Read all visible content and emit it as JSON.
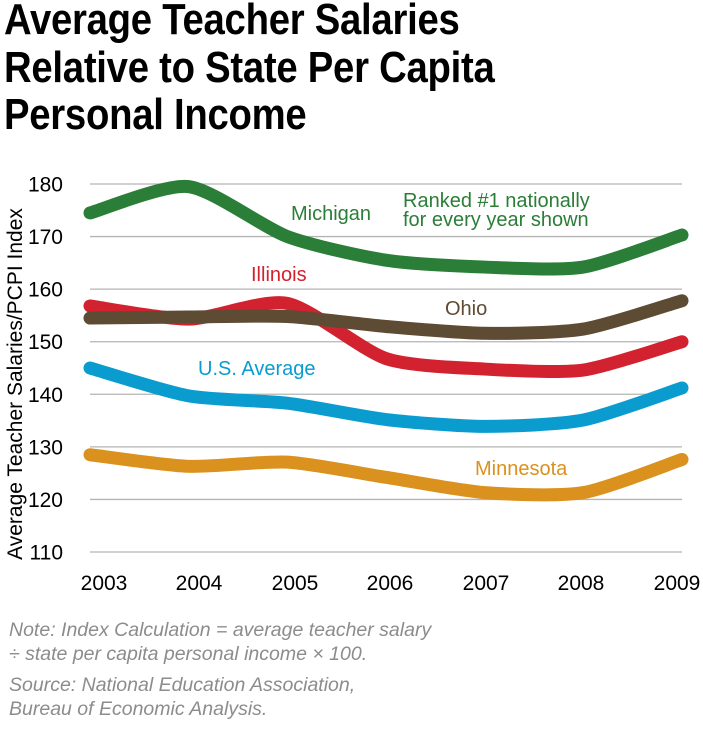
{
  "title": {
    "lines": [
      "Average Teacher Salaries",
      "Relative to State Per Capita",
      "Personal Income"
    ]
  },
  "notes": {
    "note_line1": "Note: Index Calculation = average teacher salary",
    "note_line2": "÷ state per capita personal income × 100.",
    "source_line1": "Source: National Education Association,",
    "source_line2": "Bureau of Economic Analysis."
  },
  "chart_data": {
    "type": "line",
    "title": "Average Teacher Salaries Relative to State Per Capita Personal Income",
    "xlabel": "",
    "ylabel": "Average Teacher Salaries/PCPI Index",
    "x": [
      "2003",
      "2004",
      "2005",
      "2006",
      "2007",
      "2008",
      "2009"
    ],
    "ylim": [
      110,
      180
    ],
    "yticks": [
      "110",
      "120",
      "130",
      "140",
      "150",
      "160",
      "170",
      "180"
    ],
    "grid": true,
    "legend": "inline labels",
    "series": [
      {
        "name": "Michigan",
        "color": "#2a7e37",
        "values": [
          174.5,
          179.5,
          170.0,
          165.5,
          164.2,
          164.2,
          170.3
        ]
      },
      {
        "name": "Illinois",
        "color": "#d2222f",
        "values": [
          156.8,
          154.3,
          157.3,
          146.8,
          144.8,
          144.6,
          150.0
        ]
      },
      {
        "name": "Ohio",
        "color": "#5e4b33",
        "values": [
          154.5,
          154.7,
          154.8,
          152.9,
          151.6,
          152.4,
          157.8
        ]
      },
      {
        "name": "U.S. Average",
        "color": "#0a9ccf",
        "values": [
          145.0,
          139.7,
          138.3,
          135.2,
          133.9,
          135.1,
          141.2
        ]
      },
      {
        "name": "Minnesota",
        "color": "#db911d",
        "values": [
          128.5,
          126.3,
          127.1,
          124.2,
          121.3,
          121.3,
          127.6
        ]
      }
    ],
    "annotations": [
      {
        "text_line1": "Ranked #1 nationally",
        "text_line2": "for every year shown",
        "color": "#2a7e37"
      }
    ]
  }
}
